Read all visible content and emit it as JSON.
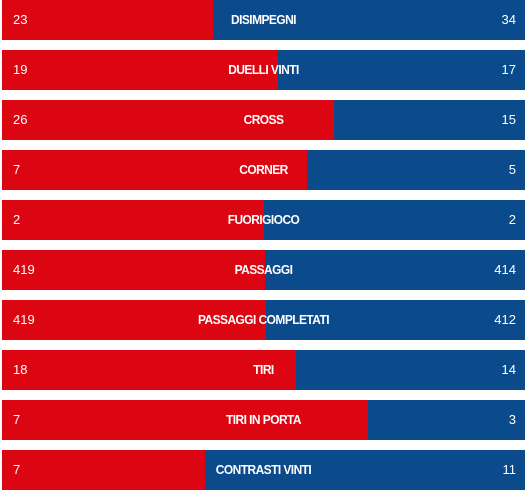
{
  "colors": {
    "home": "#db0612",
    "away": "#0b4a8b",
    "text": "#ffffff"
  },
  "chart_data": {
    "type": "bar",
    "orientation": "horizontal-stacked-share",
    "categories": [
      "DISIMPEGNI",
      "DUELLI VINTI",
      "CROSS",
      "CORNER",
      "FUORIGIOCO",
      "PASSAGGI",
      "PASSAGGI COMPLETATI",
      "TIRI",
      "TIRI IN PORTA",
      "CONTRASTI VINTI"
    ],
    "series": [
      {
        "values": [
          23,
          19,
          26,
          7,
          2,
          419,
          419,
          18,
          7,
          7
        ]
      },
      {
        "values": [
          34,
          17,
          15,
          5,
          2,
          414,
          412,
          14,
          3,
          11
        ]
      }
    ]
  }
}
